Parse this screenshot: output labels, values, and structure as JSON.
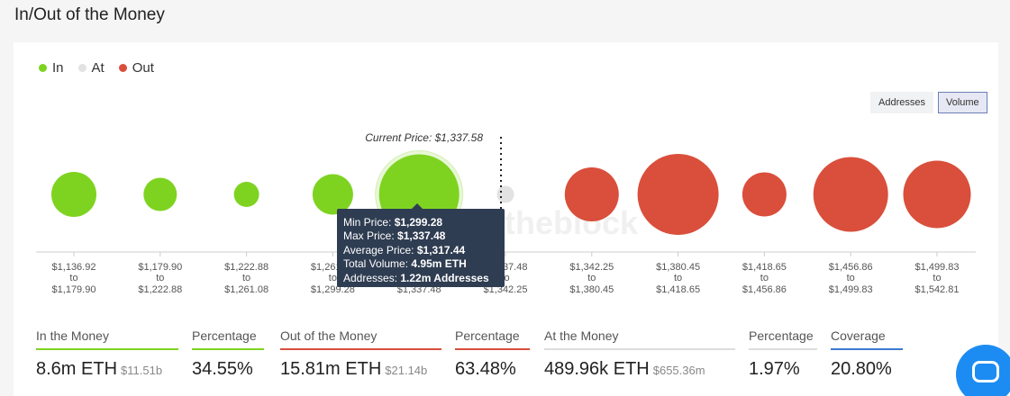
{
  "page_title": "In/Out of the Money",
  "legend": [
    {
      "label": "In",
      "color": "#7ed321"
    },
    {
      "label": "At",
      "color": "#e2e2e2"
    },
    {
      "label": "Out",
      "color": "#d94f3b"
    }
  ],
  "toggle": {
    "addresses_label": "Addresses",
    "volume_label": "Volume",
    "active": "Volume"
  },
  "watermark": "theblock",
  "chart_data": {
    "type": "bubble",
    "current_price_label": "Current Price: $1,337.58",
    "current_price": 1337.58,
    "bands": [
      {
        "from": "$1,136.92",
        "to": "$1,179.90",
        "status": "in",
        "relative_size": 0.5
      },
      {
        "from": "$1,179.90",
        "to": "$1,222.88",
        "status": "in",
        "relative_size": 0.37
      },
      {
        "from": "$1,222.88",
        "to": "$1,261.08",
        "status": "in",
        "relative_size": 0.28
      },
      {
        "from": "$1,261.08",
        "to": "$1,299.28",
        "status": "in",
        "relative_size": 0.45
      },
      {
        "from": "$1,299.28",
        "to": "$1,337.48",
        "status": "in",
        "relative_size": 0.89,
        "highlighted": true
      },
      {
        "from": "$1,337.48",
        "to": "$1,342.25",
        "status": "at",
        "relative_size": 0.19
      },
      {
        "from": "$1,342.25",
        "to": "$1,380.45",
        "status": "out",
        "relative_size": 0.6
      },
      {
        "from": "$1,380.45",
        "to": "$1,418.65",
        "status": "out",
        "relative_size": 0.9
      },
      {
        "from": "$1,418.65",
        "to": "$1,456.86",
        "status": "out",
        "relative_size": 0.49
      },
      {
        "from": "$1,456.86",
        "to": "$1,499.83",
        "status": "out",
        "relative_size": 0.83
      },
      {
        "from": "$1,499.83",
        "to": "$1,542.81",
        "status": "out",
        "relative_size": 0.75
      }
    ],
    "to_word": "to",
    "colors": {
      "in": "#7ed321",
      "at": "#e2e2e2",
      "out": "#d94f3b"
    }
  },
  "tooltip": {
    "min_label": "Min Price:",
    "min_value": "$1,299.28",
    "max_label": "Max Price:",
    "max_value": "$1,337.48",
    "avg_label": "Average Price:",
    "avg_value": "$1,317.44",
    "vol_label": "Total Volume:",
    "vol_value": "4.95m ETH",
    "addr_label": "Addresses:",
    "addr_value": "1.22m Addresses"
  },
  "stats": {
    "in_label": "In the Money",
    "in_value": "8.6m ETH",
    "in_sub": "$11.51b",
    "in_color": "#7ed321",
    "in_pct_label": "Percentage",
    "in_pct": "34.55%",
    "out_label": "Out of the Money",
    "out_value": "15.81m ETH",
    "out_sub": "$21.14b",
    "out_color": "#d94f3b",
    "out_pct_label": "Percentage",
    "out_pct": "63.48%",
    "at_label": "At the Money",
    "at_value": "489.96k ETH",
    "at_sub": "$655.36m",
    "at_color": "#dddddd",
    "at_pct_label": "Percentage",
    "at_pct": "1.97%",
    "cov_label": "Coverage",
    "cov_value": "20.80%",
    "cov_color": "#3b7bd4"
  }
}
